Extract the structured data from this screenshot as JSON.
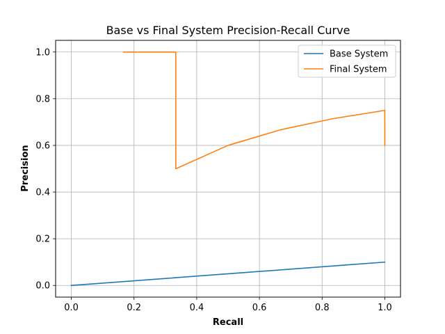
{
  "chart_data": {
    "type": "line",
    "title": "Base vs Final System Precision-Recall Curve",
    "xlabel": "Recall",
    "ylabel": "Precision",
    "xlim": [
      -0.05,
      1.05
    ],
    "ylim": [
      -0.05,
      1.05
    ],
    "xticks": [
      0.0,
      0.2,
      0.4,
      0.6,
      0.8,
      1.0
    ],
    "yticks": [
      0.0,
      0.2,
      0.4,
      0.6,
      0.8,
      1.0
    ],
    "xtick_labels": [
      "0.0",
      "0.2",
      "0.4",
      "0.6",
      "0.8",
      "1.0"
    ],
    "ytick_labels": [
      "0.0",
      "0.2",
      "0.4",
      "0.6",
      "0.8",
      "1.0"
    ],
    "grid": true,
    "legend_position": "top-right",
    "series": [
      {
        "name": "Base System",
        "color": "#1f77b4",
        "x": [
          0.0,
          1.0
        ],
        "y": [
          0.0,
          0.1
        ]
      },
      {
        "name": "Final System",
        "color": "#ff7f0e",
        "x": [
          0.1667,
          0.3333,
          0.3333,
          0.5,
          0.6667,
          0.8333,
          1.0,
          1.0
        ],
        "y": [
          1.0,
          1.0,
          0.5,
          0.6,
          0.6667,
          0.7143,
          0.75,
          0.6
        ]
      }
    ]
  }
}
